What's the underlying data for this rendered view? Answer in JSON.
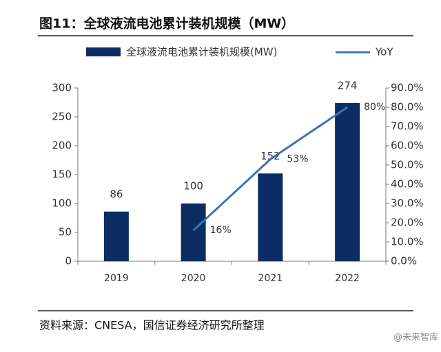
{
  "chart_data": {
    "type": "bar-line",
    "title": "图11：全球液流电池累计装机规模（MW）",
    "categories": [
      "2019",
      "2020",
      "2021",
      "2022"
    ],
    "series": [
      {
        "name": "全球液流电池累计装机规模(MW)",
        "color": "#0b2d63",
        "type": "bar",
        "values": [
          86,
          100,
          152,
          274
        ]
      },
      {
        "name": "YoY",
        "color": "#3d73b3",
        "type": "line",
        "axis": "y2",
        "values": [
          null,
          16,
          53,
          80
        ],
        "value_labels": [
          null,
          "16%",
          "53%",
          "80%"
        ]
      }
    ],
    "ylim": [
      0,
      300
    ],
    "yticks": [
      0,
      50,
      100,
      150,
      200,
      250,
      300
    ],
    "y2lim": [
      0,
      90
    ],
    "y2ticks": [
      {
        "value": 0,
        "label": "0.0%"
      },
      {
        "value": 10,
        "label": "10.0%"
      },
      {
        "value": 20,
        "label": "20.0%"
      },
      {
        "value": 30,
        "label": "30.0%"
      },
      {
        "value": 40,
        "label": "40.0%"
      },
      {
        "value": 50,
        "label": "50.0%"
      },
      {
        "value": 60,
        "label": "60.0%"
      },
      {
        "value": 70,
        "label": "70.0%"
      },
      {
        "value": 80,
        "label": "80.0%"
      },
      {
        "value": 90,
        "label": "90.0%"
      }
    ],
    "source": "资料来源：CNESA，国信证券经济研究所整理",
    "watermark": "@未来智库"
  }
}
